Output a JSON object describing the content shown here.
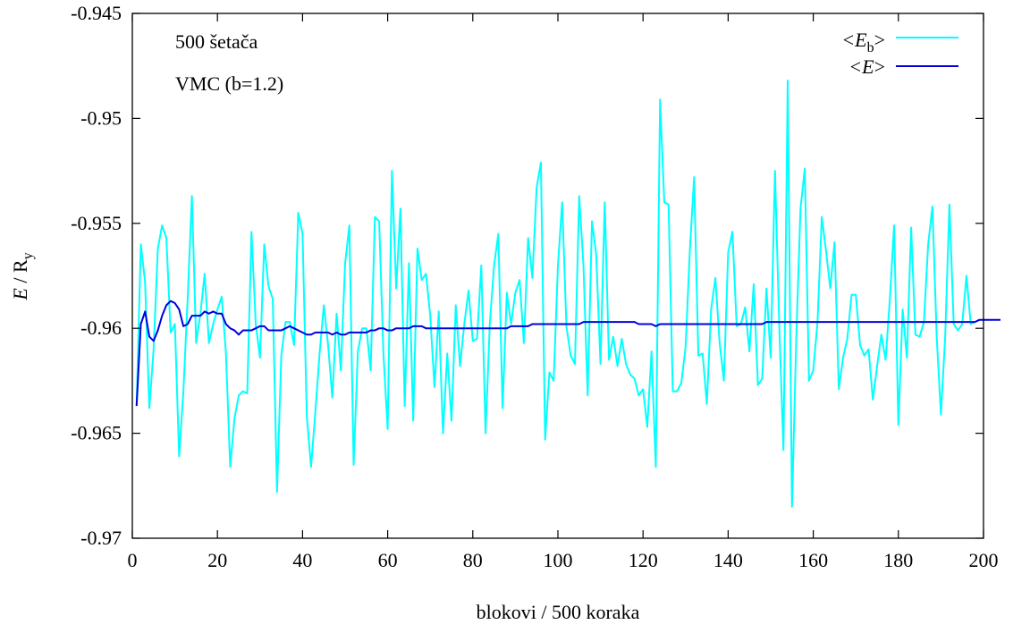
{
  "chart_data": {
    "type": "line",
    "xlabel": "blokovi / 500 koraka",
    "ylabel": {
      "main": "E",
      "sep": " / R",
      "sub": "y"
    },
    "xlim": [
      0,
      200
    ],
    "ylim": [
      -0.97,
      -0.945
    ],
    "xticks": [
      0,
      20,
      40,
      60,
      80,
      100,
      120,
      140,
      160,
      180,
      200
    ],
    "xtick_labels": [
      "0",
      "20",
      "40",
      "60",
      "80",
      "100",
      "120",
      "140",
      "160",
      "180",
      "200"
    ],
    "yticks": [
      -0.97,
      -0.965,
      -0.96,
      -0.955,
      -0.95,
      -0.945
    ],
    "ytick_labels": [
      "-0.97",
      "-0.965",
      "-0.96",
      "-0.955",
      "-0.95",
      "-0.945"
    ],
    "annotations": [
      "500 šetača",
      "VMC (b=1.2)"
    ],
    "legend_position": "top-right",
    "grid": false,
    "series": [
      {
        "name": "<E_b>",
        "legend_main": "<E",
        "legend_sub": "b",
        "legend_close": ">",
        "color": "#00ffff",
        "values": [
          -0.9637,
          -0.956,
          -0.9578,
          -0.9638,
          -0.961,
          -0.9562,
          -0.9551,
          -0.9557,
          -0.9602,
          -0.9598,
          -0.9661,
          -0.963,
          -0.9586,
          -0.9537,
          -0.9607,
          -0.9593,
          -0.9574,
          -0.9607,
          -0.9598,
          -0.9591,
          -0.9585,
          -0.9612,
          -0.9666,
          -0.9643,
          -0.9632,
          -0.963,
          -0.9631,
          -0.9554,
          -0.9598,
          -0.9614,
          -0.956,
          -0.958,
          -0.9586,
          -0.9678,
          -0.9613,
          -0.9597,
          -0.9597,
          -0.9608,
          -0.9545,
          -0.9555,
          -0.9642,
          -0.9666,
          -0.964,
          -0.9612,
          -0.9589,
          -0.9608,
          -0.9633,
          -0.9593,
          -0.962,
          -0.9569,
          -0.9551,
          -0.9665,
          -0.9611,
          -0.96,
          -0.96,
          -0.962,
          -0.9547,
          -0.9549,
          -0.9612,
          -0.9648,
          -0.9525,
          -0.9581,
          -0.9543,
          -0.9637,
          -0.9569,
          -0.9644,
          -0.9562,
          -0.9577,
          -0.9574,
          -0.9594,
          -0.9628,
          -0.9592,
          -0.965,
          -0.9612,
          -0.9644,
          -0.9589,
          -0.9618,
          -0.9598,
          -0.9582,
          -0.9606,
          -0.9605,
          -0.957,
          -0.965,
          -0.9598,
          -0.957,
          -0.9555,
          -0.9638,
          -0.9583,
          -0.9598,
          -0.9583,
          -0.9577,
          -0.9607,
          -0.9557,
          -0.9576,
          -0.9533,
          -0.9521,
          -0.9653,
          -0.9621,
          -0.9625,
          -0.957,
          -0.954,
          -0.9599,
          -0.9613,
          -0.9617,
          -0.9537,
          -0.957,
          -0.9632,
          -0.9549,
          -0.9565,
          -0.9617,
          -0.954,
          -0.9615,
          -0.9604,
          -0.9618,
          -0.9605,
          -0.9617,
          -0.9622,
          -0.9624,
          -0.9632,
          -0.9629,
          -0.9647,
          -0.9611,
          -0.9666,
          -0.9491,
          -0.954,
          -0.9541,
          -0.963,
          -0.963,
          -0.9626,
          -0.9609,
          -0.9563,
          -0.9528,
          -0.9613,
          -0.9612,
          -0.9636,
          -0.9591,
          -0.9576,
          -0.9607,
          -0.9625,
          -0.9564,
          -0.9554,
          -0.9599,
          -0.9598,
          -0.959,
          -0.9611,
          -0.9579,
          -0.9627,
          -0.9624,
          -0.9581,
          -0.9614,
          -0.9525,
          -0.9598,
          -0.9658,
          -0.9482,
          -0.9685,
          -0.9605,
          -0.9543,
          -0.9524,
          -0.9625,
          -0.962,
          -0.9597,
          -0.9547,
          -0.9563,
          -0.9581,
          -0.9559,
          -0.9629,
          -0.9614,
          -0.9605,
          -0.9584,
          -0.9584,
          -0.9608,
          -0.9613,
          -0.961,
          -0.9634,
          -0.9618,
          -0.9603,
          -0.9615,
          -0.9586,
          -0.9551,
          -0.9646,
          -0.9591,
          -0.9614,
          -0.9552,
          -0.9603,
          -0.9604,
          -0.9597,
          -0.956,
          -0.9542,
          -0.9604,
          -0.9641,
          -0.9604,
          -0.9541,
          -0.9598,
          -0.9601,
          -0.9598,
          -0.9575,
          -0.9598,
          -0.9597
        ]
      },
      {
        "name": "<E>",
        "legend_main": "<E",
        "legend_sub": "",
        "legend_close": ">",
        "color": "#0000dd",
        "values": [
          -0.9637,
          -0.9598,
          -0.9592,
          -0.9604,
          -0.9606,
          -0.9601,
          -0.9594,
          -0.9589,
          -0.9587,
          -0.9588,
          -0.9591,
          -0.9599,
          -0.9598,
          -0.9594,
          -0.9594,
          -0.9594,
          -0.9592,
          -0.9593,
          -0.9592,
          -0.9593,
          -0.9593,
          -0.9598,
          -0.96,
          -0.9601,
          -0.9603,
          -0.9601,
          -0.9601,
          -0.9601,
          -0.96,
          -0.9599,
          -0.9599,
          -0.9601,
          -0.9601,
          -0.9601,
          -0.9601,
          -0.96,
          -0.9599,
          -0.96,
          -0.9601,
          -0.9602,
          -0.9603,
          -0.9603,
          -0.9602,
          -0.9602,
          -0.9602,
          -0.9602,
          -0.9603,
          -0.9602,
          -0.9603,
          -0.9603,
          -0.9602,
          -0.9602,
          -0.9602,
          -0.9602,
          -0.9602,
          -0.9601,
          -0.9601,
          -0.96,
          -0.96,
          -0.9601,
          -0.9601,
          -0.96,
          -0.96,
          -0.96,
          -0.96,
          -0.9599,
          -0.9599,
          -0.9599,
          -0.96,
          -0.96,
          -0.96,
          -0.96,
          -0.96,
          -0.96,
          -0.96,
          -0.96,
          -0.96,
          -0.96,
          -0.96,
          -0.96,
          -0.96,
          -0.96,
          -0.96,
          -0.96,
          -0.96,
          -0.96,
          -0.96,
          -0.96,
          -0.9599,
          -0.9599,
          -0.9599,
          -0.9599,
          -0.9599,
          -0.9598,
          -0.9598,
          -0.9598,
          -0.9598,
          -0.9598,
          -0.9598,
          -0.9598,
          -0.9598,
          -0.9598,
          -0.9598,
          -0.9598,
          -0.9598,
          -0.9597,
          -0.9597,
          -0.9597,
          -0.9597,
          -0.9597,
          -0.9597,
          -0.9597,
          -0.9597,
          -0.9597,
          -0.9597,
          -0.9597,
          -0.9597,
          -0.9597,
          -0.9598,
          -0.9598,
          -0.9598,
          -0.9598,
          -0.9599,
          -0.9598,
          -0.9598,
          -0.9598,
          -0.9598,
          -0.9598,
          -0.9598,
          -0.9598,
          -0.9598,
          -0.9598,
          -0.9598,
          -0.9598,
          -0.9598,
          -0.9598,
          -0.9598,
          -0.9598,
          -0.9598,
          -0.9598,
          -0.9598,
          -0.9598,
          -0.9598,
          -0.9598,
          -0.9598,
          -0.9598,
          -0.9598,
          -0.9598,
          -0.9597,
          -0.9597,
          -0.9597,
          -0.9597,
          -0.9597,
          -0.9597,
          -0.9597,
          -0.9597,
          -0.9597,
          -0.9597,
          -0.9597,
          -0.9597,
          -0.9597,
          -0.9597,
          -0.9597,
          -0.9597,
          -0.9597,
          -0.9597,
          -0.9597,
          -0.9597,
          -0.9597,
          -0.9597,
          -0.9597,
          -0.9597,
          -0.9597,
          -0.9597,
          -0.9597,
          -0.9597,
          -0.9597,
          -0.9597,
          -0.9597,
          -0.9597,
          -0.9597,
          -0.9597,
          -0.9597,
          -0.9597,
          -0.9597,
          -0.9597,
          -0.9597,
          -0.9597,
          -0.9597,
          -0.9597,
          -0.9597,
          -0.9597,
          -0.9597,
          -0.9597,
          -0.9597,
          -0.9597,
          -0.9597,
          -0.9597,
          -0.9596,
          -0.9596,
          -0.9596,
          -0.9596,
          -0.9596,
          -0.9596
        ]
      }
    ]
  }
}
